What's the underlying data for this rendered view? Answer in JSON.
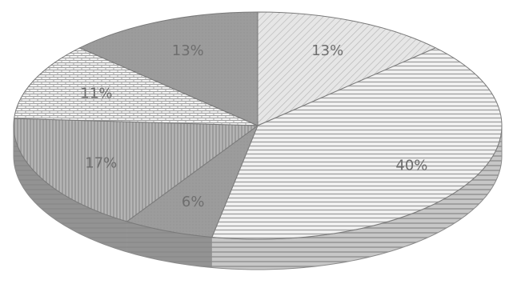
{
  "chart_data": {
    "type": "pie",
    "title": "",
    "slices": [
      {
        "label": "13%",
        "value": 13,
        "color": "#dcdcdc",
        "pattern": "diagonal-light"
      },
      {
        "label": "40%",
        "value": 40,
        "color": "#e9e9e9",
        "pattern": "horizontal-lines"
      },
      {
        "label": "6%",
        "value": 6,
        "color": "#8c8c8c",
        "pattern": "solid"
      },
      {
        "label": "17%",
        "value": 17,
        "color": "#a9a9a9",
        "pattern": "vertical-lines"
      },
      {
        "label": "11%",
        "value": 11,
        "color": "#f1f1f1",
        "pattern": "brick"
      },
      {
        "label": "13%",
        "value": 13,
        "color": "#9c9c9c",
        "pattern": "solid"
      }
    ],
    "style": "3d-pie",
    "legend": "none",
    "grid": false
  }
}
